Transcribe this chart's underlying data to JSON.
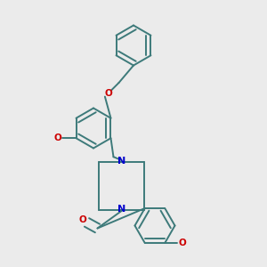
{
  "background_color": "#ebebeb",
  "bond_color": "#3d7a7a",
  "O_color": "#cc0000",
  "N_color": "#0000cc",
  "lw": 1.4,
  "dbo": 0.018,
  "figsize": [
    3.0,
    3.0
  ],
  "dpi": 100,
  "xlim": [
    0.0,
    1.0
  ],
  "ylim": [
    0.0,
    1.0
  ]
}
